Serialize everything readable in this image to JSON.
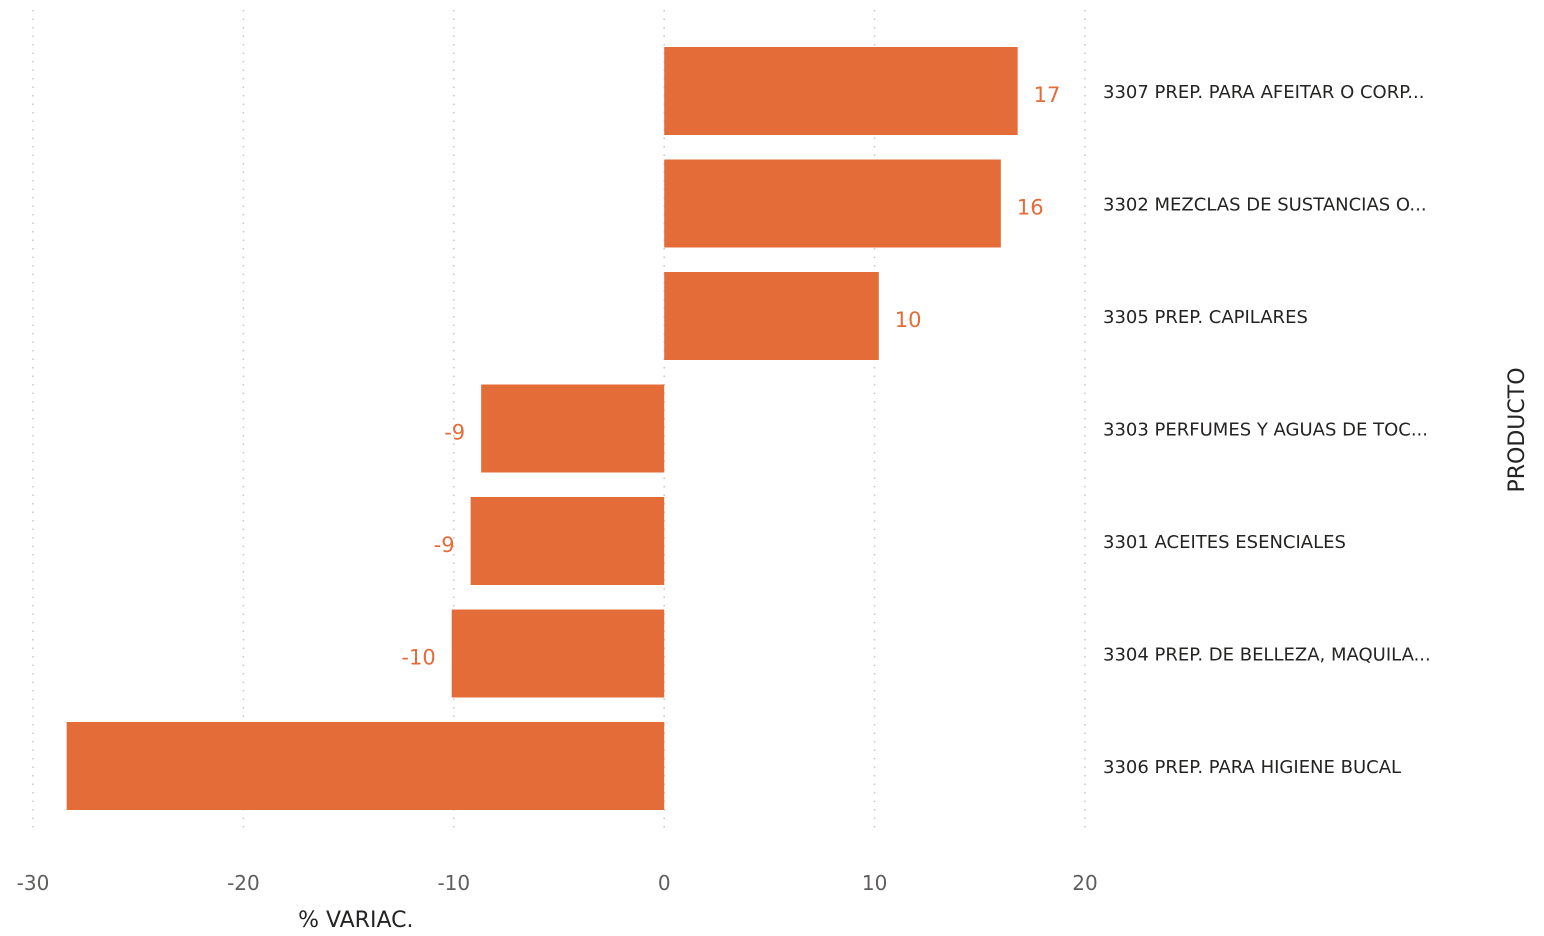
{
  "chart_data": {
    "type": "bar",
    "orientation": "horizontal",
    "xlabel": "% VARIAC.",
    "ylabel": "PRODUCTO",
    "xlim": [
      -30,
      20
    ],
    "xticks": [
      -30,
      -20,
      -10,
      0,
      10,
      20
    ],
    "xtick_labels": [
      "-30",
      "-20",
      "-10",
      "0",
      "10",
      "20"
    ],
    "grid": true,
    "bar_color": "#e46c39",
    "label_color": "#e46c39",
    "categories": [
      "3307 PREP. PARA AFEITAR O CORP...",
      "3302 MEZCLAS DE SUSTANCIAS O...",
      "3305 PREP. CAPILARES",
      "3303 PERFUMES Y AGUAS DE TOC...",
      "3301 ACEITES ESENCIALES",
      "3304 PREP. DE BELLEZA, MAQUILA...",
      "3306 PREP. PARA HIGIENE BUCAL"
    ],
    "values": [
      16.8,
      16.0,
      10.2,
      -8.7,
      -9.2,
      -10.1,
      -28.4
    ],
    "data_labels": [
      "17",
      "16",
      "10",
      "-9",
      "-9",
      "-10",
      ""
    ]
  }
}
